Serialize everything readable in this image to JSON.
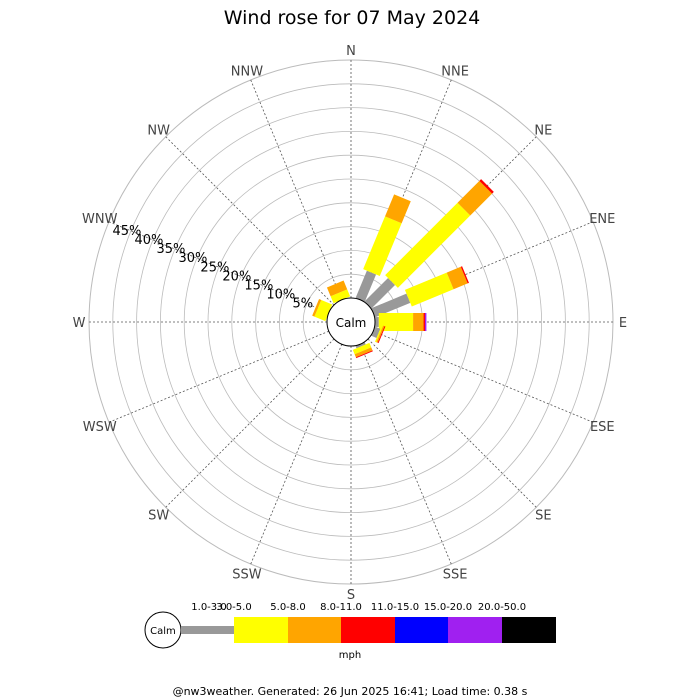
{
  "chart_data": {
    "type": "wind-rose",
    "title": "Wind rose for 07 May 2024",
    "directions": [
      "N",
      "NNE",
      "NE",
      "ENE",
      "E",
      "ESE",
      "SE",
      "SSE",
      "S",
      "SSW",
      "SW",
      "WSW",
      "W",
      "WNW",
      "NW",
      "NNW"
    ],
    "radial_ticks": [
      "5%",
      "10%",
      "15%",
      "20%",
      "25%",
      "30%",
      "35%",
      "40%",
      "45%"
    ],
    "radial_max": 50,
    "calm_label": "Calm",
    "speed_bins": [
      {
        "label": "1.0-3.0",
        "color": "#999999"
      },
      {
        "label": "3.0-5.0",
        "color": "#ffff00"
      },
      {
        "label": "5.0-8.0",
        "color": "#ffa500"
      },
      {
        "label": "8.0-11.0",
        "color": "#ff0000"
      },
      {
        "label": "11.0-15.0",
        "color": "#0000ff"
      },
      {
        "label": "15.0-20.0",
        "color": "#a020f0"
      },
      {
        "label": "20.0-50.0",
        "color": "#000000"
      }
    ],
    "unit_label": "mph",
    "series": [
      {
        "direction": "N",
        "values": [
          0,
          0,
          0,
          0,
          0,
          0,
          0
        ]
      },
      {
        "direction": "NNE",
        "values": [
          6.2,
          12.0,
          5.0,
          0,
          0,
          0,
          0
        ]
      },
      {
        "direction": "NE",
        "values": [
          7.0,
          21.5,
          6.5,
          0.5,
          0,
          0,
          0
        ]
      },
      {
        "direction": "ENE",
        "values": [
          8.0,
          9.5,
          3.2,
          0.3,
          0,
          0,
          0
        ]
      },
      {
        "direction": "E",
        "values": [
          0.8,
          7.2,
          2.2,
          0.3,
          0,
          0.3,
          0
        ]
      },
      {
        "direction": "ESE",
        "values": [
          1.2,
          0.3,
          0.3,
          0.2,
          0,
          0,
          0
        ]
      },
      {
        "direction": "SE",
        "values": [
          0,
          0,
          0,
          0,
          0,
          0,
          0
        ]
      },
      {
        "direction": "SSE",
        "values": [
          0.5,
          1.0,
          0.7,
          0.2,
          0,
          0,
          0
        ]
      },
      {
        "direction": "S",
        "values": [
          0,
          0,
          0,
          0,
          0,
          0,
          0
        ]
      },
      {
        "direction": "SSW",
        "values": [
          0,
          0,
          0,
          0,
          0,
          0,
          0
        ]
      },
      {
        "direction": "SW",
        "values": [
          0,
          0,
          0,
          0,
          0,
          0,
          0
        ]
      },
      {
        "direction": "WSW",
        "values": [
          0,
          0,
          0,
          0,
          0,
          0,
          0
        ]
      },
      {
        "direction": "W",
        "values": [
          0,
          0,
          0,
          0,
          0,
          0,
          0
        ]
      },
      {
        "direction": "WNW",
        "values": [
          0,
          2.5,
          0.5,
          0,
          0,
          0,
          0
        ]
      },
      {
        "direction": "NW",
        "values": [
          0,
          0,
          0,
          0,
          0,
          0,
          0
        ]
      },
      {
        "direction": "NNW",
        "values": [
          0,
          1.6,
          2.0,
          0,
          0,
          0,
          0
        ]
      }
    ]
  },
  "footer": "@nw3weather. Generated: 26 Jun 2025 16:41; Load time: 0.38 s"
}
